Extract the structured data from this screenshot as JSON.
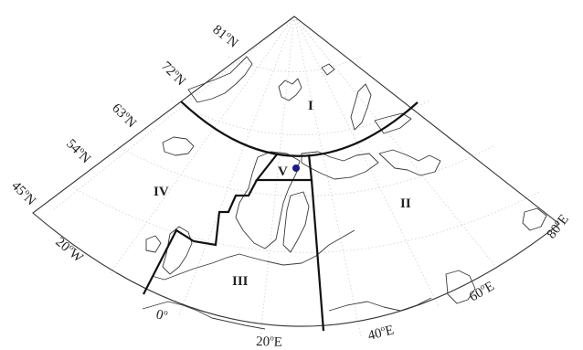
{
  "map": {
    "latitude_labels": [
      {
        "value": "81",
        "sup": "o",
        "hemi": "N"
      },
      {
        "value": "72",
        "sup": "o",
        "hemi": "N"
      },
      {
        "value": "63",
        "sup": "o",
        "hemi": "N"
      },
      {
        "value": "54",
        "sup": "o",
        "hemi": "N"
      },
      {
        "value": "45",
        "sup": "o",
        "hemi": "N"
      }
    ],
    "longitude_labels": [
      {
        "value": "20",
        "sup": "o",
        "hemi": "W"
      },
      {
        "value": "0",
        "sup": "o",
        "hemi": ""
      },
      {
        "value": "20",
        "sup": "o",
        "hemi": "E"
      },
      {
        "value": "40",
        "sup": "o",
        "hemi": "E"
      },
      {
        "value": "60",
        "sup": "o",
        "hemi": "E"
      },
      {
        "value": "80",
        "sup": "o",
        "hemi": "E"
      }
    ],
    "regions": [
      {
        "id": "region-I",
        "label": "I"
      },
      {
        "id": "region-II",
        "label": "II"
      },
      {
        "id": "region-III",
        "label": "III"
      },
      {
        "id": "region-IV",
        "label": "IV"
      },
      {
        "id": "region-V",
        "label": "V"
      }
    ],
    "marker": {
      "name": "station-marker",
      "color": "#1a1a8c"
    },
    "colors": {
      "boundary": "#111111",
      "coastline": "#3a3a3a",
      "graticule": "#c9c9c9"
    }
  }
}
